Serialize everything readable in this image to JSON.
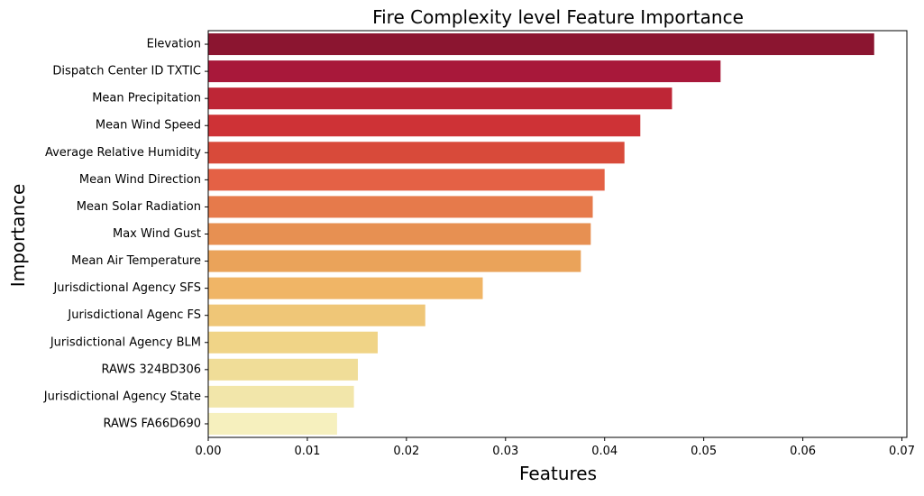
{
  "chart_data": {
    "type": "bar",
    "orientation": "horizontal",
    "title": "Fire Complexity level Feature Importance",
    "xlabel": "Features",
    "ylabel": "Importance",
    "xlim": [
      0,
      0.0705
    ],
    "xticks": [
      0,
      0.01,
      0.02,
      0.03,
      0.04,
      0.05,
      0.06,
      0.07
    ],
    "xtick_labels": [
      "0.00",
      "0.01",
      "0.02",
      "0.03",
      "0.04",
      "0.05",
      "0.06",
      "0.07"
    ],
    "grid": false,
    "legend": "none",
    "categories": [
      "Elevation",
      "Dispatch Center ID TXTIC",
      "Mean Precipitation",
      "Mean Wind Speed",
      "Average Relative Humidity",
      "Mean Wind Direction",
      "Mean Solar Radiation",
      "Max Wind Gust",
      "Mean Air Temperature",
      "Jurisdictional Agency SFS",
      "Jurisdictional Agenc FS",
      "Jurisdictional Agency BLM",
      "RAWS 324BD306",
      "Jurisdictional Agency State",
      "RAWS FA66D690"
    ],
    "values": [
      0.0672,
      0.0517,
      0.0468,
      0.0436,
      0.042,
      0.04,
      0.0388,
      0.0386,
      0.0376,
      0.0277,
      0.0219,
      0.0171,
      0.0151,
      0.0147,
      0.013
    ],
    "colors": [
      "#8B1530",
      "#A8183A",
      "#BE2636",
      "#CE3236",
      "#D84A3A",
      "#E46145",
      "#E67A4B",
      "#E79052",
      "#EAA35A",
      "#F0B566",
      "#EFC677",
      "#F0D487",
      "#F0DD98",
      "#F2E6AA",
      "#F6F0BE"
    ]
  }
}
